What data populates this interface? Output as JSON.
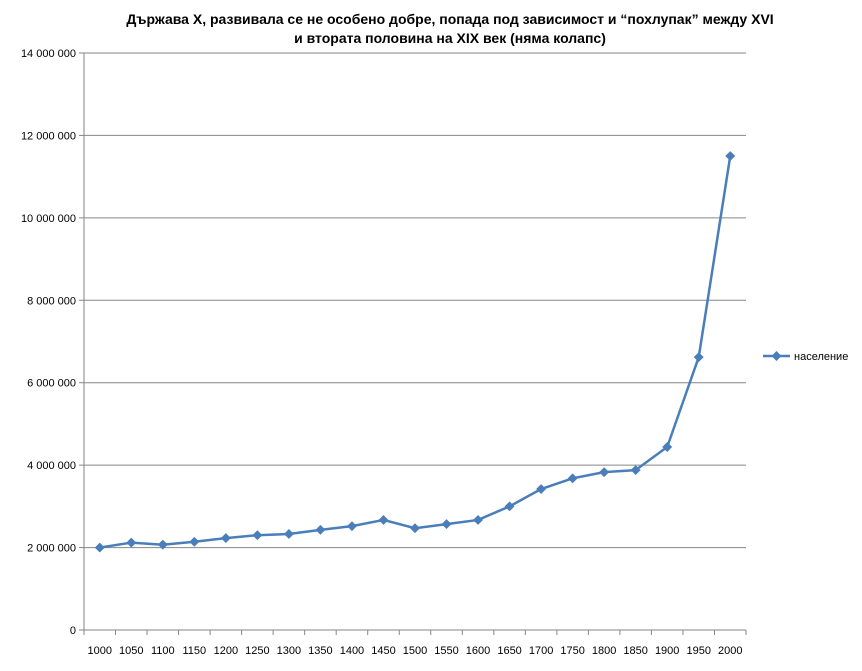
{
  "chart_data": {
    "type": "line",
    "title_line1": "Държава X, развивала се не особено добре, попада под зависимост и “похлупак” между XVI",
    "title_line2": "и втората половина на XIX век (няма колапс)",
    "categories": [
      "1000",
      "1050",
      "1100",
      "1150",
      "1200",
      "1250",
      "1300",
      "1350",
      "1400",
      "1450",
      "1500",
      "1550",
      "1600",
      "1650",
      "1700",
      "1750",
      "1800",
      "1850",
      "1900",
      "1950",
      "2000"
    ],
    "series": [
      {
        "name": "население",
        "color": "#4a7ebb",
        "values": [
          2000000,
          2120000,
          2070000,
          2140000,
          2230000,
          2300000,
          2330000,
          2430000,
          2520000,
          2670000,
          2470000,
          2570000,
          2670000,
          3000000,
          3420000,
          3680000,
          3830000,
          3880000,
          4440000,
          6620000,
          11500000
        ]
      }
    ],
    "ylim": [
      0,
      14000000
    ],
    "yticks": [
      0,
      2000000,
      4000000,
      6000000,
      8000000,
      10000000,
      12000000,
      14000000
    ],
    "ytick_labels": [
      "0",
      "2 000 000",
      "4 000 000",
      "6 000 000",
      "8 000 000",
      "10 000 000",
      "12 000 000",
      "14 000 000"
    ],
    "grid": true,
    "legend": "right"
  }
}
